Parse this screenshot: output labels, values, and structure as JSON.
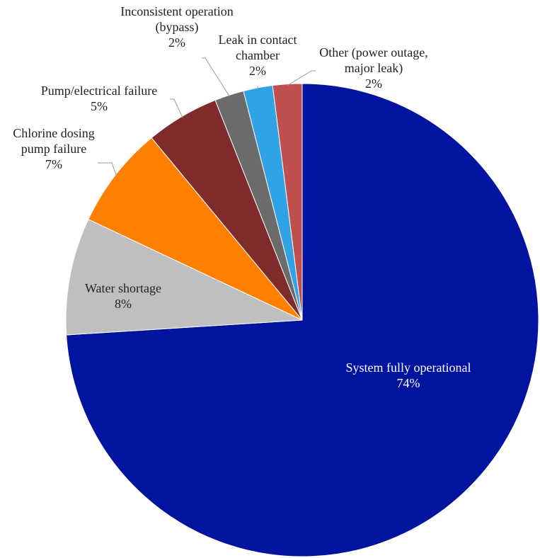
{
  "chart_data": {
    "type": "pie",
    "title": "",
    "start": "12 o'clock",
    "direction": "clockwise",
    "slices": [
      {
        "label": [
          "System fully operational"
        ],
        "value": 74,
        "value_label": "74%",
        "color": "#0014a0"
      },
      {
        "label": [
          "Water shortage"
        ],
        "value": 8,
        "value_label": "8%",
        "color": "#bfbfbf"
      },
      {
        "label": [
          "Chlorine dosing",
          "pump failure"
        ],
        "value": 7,
        "value_label": "7%",
        "color": "#ff8000"
      },
      {
        "label": [
          "Pump/electrical failure"
        ],
        "value": 5,
        "value_label": "5%",
        "color": "#7f2b2b"
      },
      {
        "label": [
          "Inconsistent operation",
          "(bypass)"
        ],
        "value": 2,
        "value_label": "2%",
        "color": "#6b6b6b"
      },
      {
        "label": [
          "Leak in contact",
          "chamber"
        ],
        "value": 2,
        "value_label": "2%",
        "color": "#2fa3e6"
      },
      {
        "label": [
          "Other (power outage,",
          "major leak)"
        ],
        "value": 2,
        "value_label": "2%",
        "color": "#c0504d"
      }
    ]
  }
}
